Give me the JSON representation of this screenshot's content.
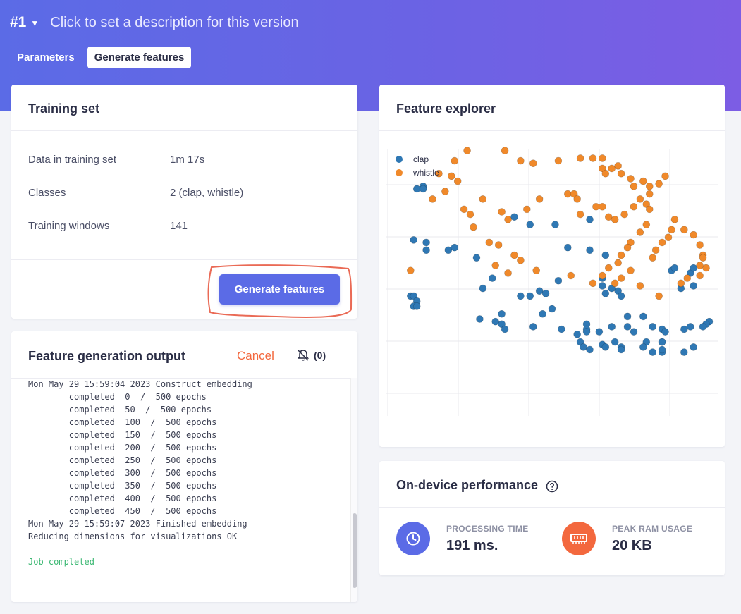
{
  "header": {
    "version": "#1",
    "description": "Click to set a description for this version",
    "tabs": [
      {
        "label": "Parameters",
        "active": false
      },
      {
        "label": "Generate features",
        "active": true
      }
    ],
    "gradient": [
      "#5b6be6",
      "#7c5de4"
    ]
  },
  "training_set": {
    "title": "Training set",
    "rows": [
      {
        "key": "Data in training set",
        "value": "1m 17s"
      },
      {
        "key": "Classes",
        "value": "2 (clap, whistle)"
      },
      {
        "key": "Training windows",
        "value": "141"
      }
    ],
    "button": "Generate features",
    "button_color": "#5b6be6"
  },
  "output": {
    "title": "Feature generation output",
    "cancel": "Cancel",
    "notification_count": "(0)",
    "lines": [
      "Mon May 29 15:59:04 2023 Construct embedding",
      "        completed  0  /  500 epochs",
      "        completed  50  /  500 epochs",
      "        completed  100  /  500 epochs",
      "        completed  150  /  500 epochs",
      "        completed  200  /  500 epochs",
      "        completed  250  /  500 epochs",
      "        completed  300  /  500 epochs",
      "        completed  350  /  500 epochs",
      "        completed  400  /  500 epochs",
      "        completed  450  /  500 epochs",
      "Mon May 29 15:59:07 2023 Finished embedding",
      "Reducing dimensions for visualizations OK",
      "",
      "Job completed"
    ]
  },
  "explorer": {
    "title": "Feature explorer",
    "chart_data": {
      "type": "scatter",
      "legend_position": "top-left",
      "grid": true,
      "xlim": [
        0,
        100
      ],
      "ylim": [
        0,
        100
      ],
      "series": [
        {
          "name": "clap",
          "color": "#2f78b4",
          "points": [
            [
              7,
              84
            ],
            [
              9,
              85
            ],
            [
              9,
              84
            ],
            [
              6,
              64
            ],
            [
              10,
              63
            ],
            [
              10,
              60
            ],
            [
              17,
              60
            ],
            [
              19,
              61
            ],
            [
              26,
              57
            ],
            [
              38,
              73
            ],
            [
              43,
              70
            ],
            [
              51,
              70
            ],
            [
              55,
              61
            ],
            [
              62,
              72
            ],
            [
              62,
              60
            ],
            [
              67,
              58
            ],
            [
              31,
              49
            ],
            [
              28,
              45
            ],
            [
              5,
              42
            ],
            [
              6,
              42
            ],
            [
              7,
              40
            ],
            [
              6,
              38
            ],
            [
              7,
              38
            ],
            [
              40,
              42
            ],
            [
              43,
              42
            ],
            [
              46,
              44
            ],
            [
              48,
              43
            ],
            [
              52,
              48
            ],
            [
              66,
              49
            ],
            [
              66,
              46
            ],
            [
              67,
              43
            ],
            [
              69,
              45
            ],
            [
              71,
              44
            ],
            [
              72,
              42
            ],
            [
              27,
              33
            ],
            [
              32,
              32
            ],
            [
              34,
              31
            ],
            [
              35,
              29
            ],
            [
              34,
              35
            ],
            [
              47,
              35
            ],
            [
              44,
              30
            ],
            [
              50,
              37
            ],
            [
              53,
              29
            ],
            [
              58,
              27
            ],
            [
              61,
              31
            ],
            [
              65,
              28
            ],
            [
              69,
              30
            ],
            [
              70,
              24
            ],
            [
              74,
              34
            ],
            [
              74,
              30
            ],
            [
              76,
              28
            ],
            [
              79,
              34
            ],
            [
              82,
              30
            ],
            [
              61,
              29
            ],
            [
              61,
              28
            ],
            [
              80,
              24
            ],
            [
              72,
              22
            ],
            [
              66,
              23
            ],
            [
              59,
              24
            ],
            [
              60,
              22
            ],
            [
              62,
              21
            ],
            [
              67,
              22
            ],
            [
              72,
              21
            ],
            [
              79,
              22
            ],
            [
              82,
              20
            ],
            [
              85,
              20
            ],
            [
              85,
              24
            ],
            [
              85,
              29
            ],
            [
              86,
              28
            ],
            [
              92,
              20
            ],
            [
              95,
              22
            ],
            [
              100,
              32
            ],
            [
              99,
              31
            ],
            [
              98,
              30
            ],
            [
              85,
              21
            ],
            [
              85,
              24
            ],
            [
              88,
              52
            ],
            [
              89,
              53
            ],
            [
              94,
              51
            ],
            [
              95,
              46
            ],
            [
              91,
              45
            ],
            [
              95,
              53
            ],
            [
              92,
              29
            ],
            [
              94,
              30
            ]
          ]
        },
        {
          "name": "whistle",
          "color": "#f0892a",
          "points": [
            [
              19,
              95
            ],
            [
              23,
              99
            ],
            [
              35,
              99
            ],
            [
              40,
              95
            ],
            [
              44,
              94
            ],
            [
              52,
              95
            ],
            [
              59,
              96
            ],
            [
              63,
              96
            ],
            [
              66,
              96
            ],
            [
              66,
              92
            ],
            [
              67,
              90
            ],
            [
              69,
              92
            ],
            [
              71,
              93
            ],
            [
              72,
              90
            ],
            [
              75,
              88
            ],
            [
              79,
              87
            ],
            [
              76,
              85
            ],
            [
              81,
              82
            ],
            [
              81,
              85
            ],
            [
              84,
              86
            ],
            [
              86,
              89
            ],
            [
              14,
              90
            ],
            [
              18,
              89
            ],
            [
              20,
              87
            ],
            [
              16,
              83
            ],
            [
              12,
              80
            ],
            [
              22,
              76
            ],
            [
              28,
              80
            ],
            [
              34,
              75
            ],
            [
              36,
              72
            ],
            [
              42,
              76
            ],
            [
              46,
              80
            ],
            [
              55,
              82
            ],
            [
              57,
              82
            ],
            [
              58,
              80
            ],
            [
              59,
              74
            ],
            [
              64,
              77
            ],
            [
              66,
              77
            ],
            [
              68,
              73
            ],
            [
              70,
              72
            ],
            [
              73,
              74
            ],
            [
              76,
              77
            ],
            [
              78,
              80
            ],
            [
              80,
              78
            ],
            [
              81,
              76
            ],
            [
              80,
              70
            ],
            [
              78,
              67
            ],
            [
              75,
              63
            ],
            [
              74,
              61
            ],
            [
              72,
              58
            ],
            [
              75,
              52
            ],
            [
              71,
              55
            ],
            [
              68,
              53
            ],
            [
              66,
              50
            ],
            [
              72,
              49
            ],
            [
              82,
              57
            ],
            [
              83,
              60
            ],
            [
              85,
              63
            ],
            [
              87,
              65
            ],
            [
              88,
              68
            ],
            [
              89,
              72
            ],
            [
              92,
              68
            ],
            [
              95,
              66
            ],
            [
              97,
              62
            ],
            [
              98,
              58
            ],
            [
              99,
              53
            ],
            [
              30,
              63
            ],
            [
              33,
              62
            ],
            [
              38,
              58
            ],
            [
              40,
              56
            ],
            [
              36,
              51
            ],
            [
              32,
              54
            ],
            [
              45,
              52
            ],
            [
              56,
              50
            ],
            [
              63,
              47
            ],
            [
              70,
              47
            ],
            [
              78,
              46
            ],
            [
              84,
              42
            ],
            [
              91,
              47
            ],
            [
              93,
              49
            ],
            [
              97,
              50
            ],
            [
              97,
              54
            ],
            [
              98,
              57
            ],
            [
              5,
              52
            ],
            [
              24,
              74
            ],
            [
              25,
              69
            ]
          ]
        }
      ]
    }
  },
  "performance": {
    "title": "On-device performance",
    "metrics": [
      {
        "label": "PROCESSING TIME",
        "value": "191 ms.",
        "icon": "clock-icon",
        "color": "#5b6be6"
      },
      {
        "label": "PEAK RAM USAGE",
        "value": "20 KB",
        "icon": "ram-icon",
        "color": "#f3683e"
      }
    ]
  }
}
